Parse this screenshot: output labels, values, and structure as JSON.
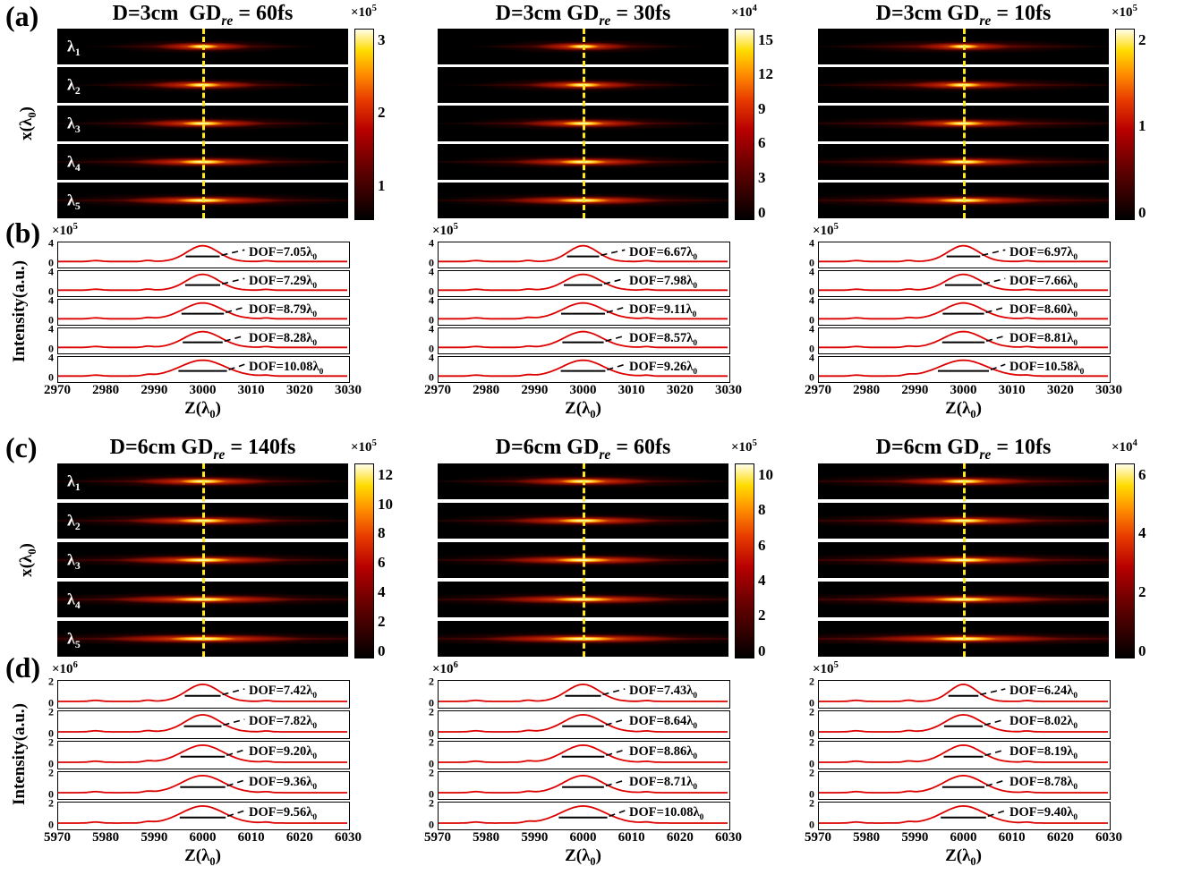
{
  "display": {
    "a": {
      "tag": "(a)",
      "ylabel": {
        "pre": "x(λ",
        "sub": "0",
        "post": ")"
      },
      "row_labels": [
        {
          "pre": "λ",
          "sub": "1"
        },
        {
          "pre": "λ",
          "sub": "2"
        },
        {
          "pre": "λ",
          "sub": "3"
        },
        {
          "pre": "λ",
          "sub": "4"
        },
        {
          "pre": "λ",
          "sub": "5"
        }
      ],
      "columns": [
        {
          "title": {
            "pre": "D=3cm  GD",
            "sub": "re",
            "post": " = 60fs"
          },
          "cb_exp": {
            "pre": "×10",
            "sup": "5"
          },
          "cb_ticks": [
            "3",
            "2",
            "1"
          ]
        },
        {
          "title": {
            "pre": "D=3cm GD",
            "sub": "re",
            "post": " = 30fs"
          },
          "cb_exp": {
            "pre": "×10",
            "sup": "4"
          },
          "cb_ticks": [
            "15",
            "12",
            "9",
            "6",
            "3",
            "0"
          ]
        },
        {
          "title": {
            "pre": "D=3cm GD",
            "sub": "re",
            "post": " = 10fs"
          },
          "cb_exp": {
            "pre": "×10",
            "sup": "5"
          },
          "cb_ticks": [
            "2",
            "1",
            "0"
          ]
        }
      ]
    },
    "b": {
      "tag": "(b)",
      "ylabel": "Intensity(a.u.)",
      "xlabel": {
        "pre": "Z(λ",
        "sub": "0",
        "post": ")"
      },
      "xticks": [
        "2970",
        "2980",
        "2990",
        "3000",
        "3010",
        "3020",
        "3030"
      ],
      "yticks": [
        "4",
        "0"
      ],
      "columns": [
        {
          "exp": {
            "pre": "×10",
            "sup": "5"
          },
          "dof_labels": [
            {
              "pre": "DOF=7.05λ",
              "sub": "0"
            },
            {
              "pre": "DOF=7.29λ",
              "sub": "0"
            },
            {
              "pre": "DOF=8.79λ",
              "sub": "0"
            },
            {
              "pre": "DOF=8.28λ",
              "sub": "0"
            },
            {
              "pre": "DOF=10.08λ",
              "sub": "0"
            }
          ]
        },
        {
          "exp": {
            "pre": "×10",
            "sup": "5"
          },
          "dof_labels": [
            {
              "pre": "DOF=6.67λ",
              "sub": "0"
            },
            {
              "pre": "DOF=7.98λ",
              "sub": "0"
            },
            {
              "pre": "DOF=9.11λ",
              "sub": "0"
            },
            {
              "pre": "DOF=8.57λ",
              "sub": "0"
            },
            {
              "pre": "DOF=9.26λ",
              "sub": "0"
            }
          ]
        },
        {
          "exp": {
            "pre": "×10",
            "sup": "5"
          },
          "dof_labels": [
            {
              "pre": "DOF=6.97λ",
              "sub": "0"
            },
            {
              "pre": "DOF=7.66λ",
              "sub": "0"
            },
            {
              "pre": "DOF=8.60λ",
              "sub": "0"
            },
            {
              "pre": "DOF=8.81λ",
              "sub": "0"
            },
            {
              "pre": "DOF=10.58λ",
              "sub": "0"
            }
          ]
        }
      ]
    },
    "c": {
      "tag": "(c)",
      "ylabel": {
        "pre": "x(λ",
        "sub": "0",
        "post": ")"
      },
      "row_labels": [
        {
          "pre": "λ",
          "sub": "1"
        },
        {
          "pre": "λ",
          "sub": "2"
        },
        {
          "pre": "λ",
          "sub": "3"
        },
        {
          "pre": "λ",
          "sub": "4"
        },
        {
          "pre": "λ",
          "sub": "5"
        }
      ],
      "columns": [
        {
          "title": {
            "pre": "D=6cm GD",
            "sub": "re",
            "post": " = 140fs"
          },
          "cb_exp": {
            "pre": "×10",
            "sup": "5"
          },
          "cb_ticks": [
            "12",
            "10",
            "8",
            "6",
            "4",
            "2",
            "0"
          ]
        },
        {
          "title": {
            "pre": "D=6cm GD",
            "sub": "re",
            "post": " = 60fs"
          },
          "cb_exp": {
            "pre": "×10",
            "sup": "5"
          },
          "cb_ticks": [
            "10",
            "8",
            "6",
            "4",
            "2",
            "0"
          ]
        },
        {
          "title": {
            "pre": "D=6cm GD",
            "sub": "re",
            "post": " = 10fs"
          },
          "cb_exp": {
            "pre": "×10",
            "sup": "4"
          },
          "cb_ticks": [
            "6",
            "4",
            "2",
            "0"
          ]
        }
      ]
    },
    "d": {
      "tag": "(d)",
      "ylabel": "Intensity(a.u.)",
      "xlabel": {
        "pre": "Z(λ",
        "sub": "0",
        "post": ")"
      },
      "xticks": [
        "5970",
        "5980",
        "5990",
        "6000",
        "6010",
        "6020",
        "6030"
      ],
      "yticks": [
        "2",
        "0"
      ],
      "columns": [
        {
          "exp": {
            "pre": "×10",
            "sup": "6"
          },
          "dof_labels": [
            {
              "pre": "DOF=7.42λ",
              "sub": "0"
            },
            {
              "pre": "DOF=7.82λ",
              "sub": "0"
            },
            {
              "pre": "DOF=9.20λ",
              "sub": "0"
            },
            {
              "pre": "DOF=9.36λ",
              "sub": "0"
            },
            {
              "pre": "DOF=9.56λ",
              "sub": "0"
            }
          ]
        },
        {
          "exp": {
            "pre": "×10",
            "sup": "6"
          },
          "dof_labels": [
            {
              "pre": "DOF=7.43λ",
              "sub": "0"
            },
            {
              "pre": "DOF=8.64λ",
              "sub": "0"
            },
            {
              "pre": "DOF=8.86λ",
              "sub": "0"
            },
            {
              "pre": "DOF=8.71λ",
              "sub": "0"
            },
            {
              "pre": "DOF=10.08λ",
              "sub": "0"
            }
          ]
        },
        {
          "exp": {
            "pre": "×10",
            "sup": "5"
          },
          "dof_labels": [
            {
              "pre": "DOF=6.24λ",
              "sub": "0"
            },
            {
              "pre": "DOF=8.02λ",
              "sub": "0"
            },
            {
              "pre": "DOF=8.19λ",
              "sub": "0"
            },
            {
              "pre": "DOF=8.78λ",
              "sub": "0"
            },
            {
              "pre": "DOF=9.40λ",
              "sub": "0"
            }
          ]
        }
      ]
    }
  },
  "chart_data": [
    {
      "type": "heatmap",
      "panel": "a",
      "title": "Intensity distributions in x-z plane, lens D=3cm, five wavelengths",
      "column_conditions": [
        "D=3cm GD_re = 60fs",
        "D=3cm GD_re = 30fs",
        "D=3cm GD_re = 10fs"
      ],
      "rows": [
        "λ1",
        "λ2",
        "λ3",
        "λ4",
        "λ5"
      ],
      "xlabel": "Z(λ0)",
      "ylabel": "x(λ0)",
      "focal_plane_z_lambda0": 3000,
      "colorbars": [
        {
          "scale": "1e5",
          "ticks": [
            1,
            2,
            3
          ]
        },
        {
          "scale": "1e4",
          "ticks": [
            0,
            3,
            6,
            9,
            12,
            15
          ]
        },
        {
          "scale": "1e5",
          "ticks": [
            0,
            1,
            2
          ]
        }
      ]
    },
    {
      "type": "line",
      "panel": "b",
      "title": "On-axis intensity vs z, lens D=3cm, with depth of focus per wavelength",
      "xlabel": "Z(λ0)",
      "ylabel": "Intensity(a.u.)",
      "xlim": [
        2970,
        3030
      ],
      "x_ticks": [
        2970,
        2980,
        2990,
        3000,
        3010,
        3020,
        3030
      ],
      "ylim": [
        0,
        4
      ],
      "y_scales": [
        "1e5",
        "1e5",
        "1e5"
      ],
      "peak_center_z": 3000,
      "series": [
        {
          "condition": "GD_re = 60fs",
          "rows": [
            "λ1",
            "λ2",
            "λ3",
            "λ4",
            "λ5"
          ],
          "dof_lambda0": [
            7.05,
            7.29,
            8.79,
            8.28,
            10.08
          ]
        },
        {
          "condition": "GD_re = 30fs",
          "rows": [
            "λ1",
            "λ2",
            "λ3",
            "λ4",
            "λ5"
          ],
          "dof_lambda0": [
            6.67,
            7.98,
            9.11,
            8.57,
            9.26
          ]
        },
        {
          "condition": "GD_re = 10fs",
          "rows": [
            "λ1",
            "λ2",
            "λ3",
            "λ4",
            "λ5"
          ],
          "dof_lambda0": [
            6.97,
            7.66,
            8.6,
            8.81,
            10.58
          ]
        }
      ]
    },
    {
      "type": "heatmap",
      "panel": "c",
      "title": "Intensity distributions in x-z plane, lens D=6cm, five wavelengths",
      "column_conditions": [
        "D=6cm GD_re = 140fs",
        "D=6cm GD_re = 60fs",
        "D=6cm GD_re = 10fs"
      ],
      "rows": [
        "λ1",
        "λ2",
        "λ3",
        "λ4",
        "λ5"
      ],
      "xlabel": "Z(λ0)",
      "ylabel": "x(λ0)",
      "focal_plane_z_lambda0": 6000,
      "colorbars": [
        {
          "scale": "1e5",
          "ticks": [
            0,
            2,
            4,
            6,
            8,
            10,
            12
          ]
        },
        {
          "scale": "1e5",
          "ticks": [
            0,
            2,
            4,
            6,
            8,
            10
          ]
        },
        {
          "scale": "1e4",
          "ticks": [
            0,
            2,
            4,
            6
          ]
        }
      ]
    },
    {
      "type": "line",
      "panel": "d",
      "title": "On-axis intensity vs z, lens D=6cm, with depth of focus per wavelength",
      "xlabel": "Z(λ0)",
      "ylabel": "Intensity(a.u.)",
      "xlim": [
        5970,
        6030
      ],
      "x_ticks": [
        5970,
        5980,
        5990,
        6000,
        6010,
        6020,
        6030
      ],
      "ylim": [
        0,
        2
      ],
      "y_scales": [
        "1e6",
        "1e6",
        "1e5"
      ],
      "peak_center_z": 6000,
      "series": [
        {
          "condition": "GD_re = 140fs",
          "rows": [
            "λ1",
            "λ2",
            "λ3",
            "λ4",
            "λ5"
          ],
          "dof_lambda0": [
            7.42,
            7.82,
            9.2,
            9.36,
            9.56
          ]
        },
        {
          "condition": "GD_re = 60fs",
          "rows": [
            "λ1",
            "λ2",
            "λ3",
            "λ4",
            "λ5"
          ],
          "dof_lambda0": [
            7.43,
            8.64,
            8.86,
            8.71,
            10.08
          ]
        },
        {
          "condition": "GD_re = 10fs",
          "rows": [
            "λ1",
            "λ2",
            "λ3",
            "λ4",
            "λ5"
          ],
          "dof_lambda0": [
            6.24,
            8.02,
            8.19,
            8.78,
            9.4
          ]
        }
      ]
    }
  ]
}
